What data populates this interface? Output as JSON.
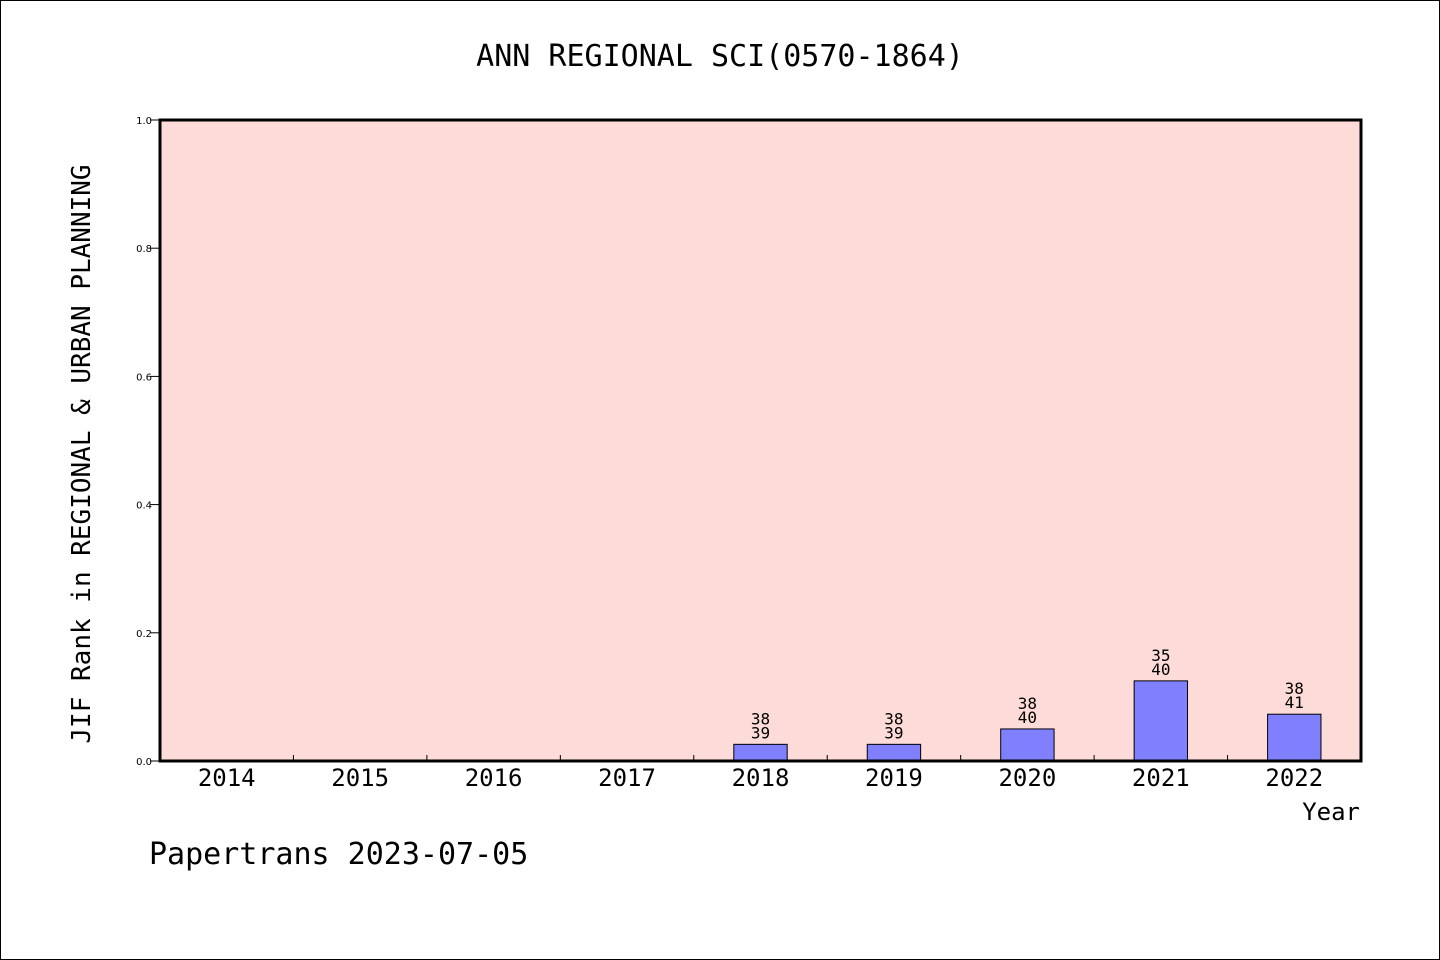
{
  "chart_data": {
    "type": "bar",
    "title": "ANN REGIONAL SCI(0570-1864)",
    "xlabel": "Year",
    "ylabel": "JIF Rank in REGIONAL & URBAN PLANNING",
    "ylim": [
      0.0,
      1.0
    ],
    "yticks": [
      "0.0",
      "0.2",
      "0.4",
      "0.6",
      "0.8",
      "1.0"
    ],
    "categories": [
      "2014",
      "2015",
      "2016",
      "2017",
      "2018",
      "2019",
      "2020",
      "2021",
      "2022"
    ],
    "values": [
      null,
      null,
      null,
      null,
      0.026,
      0.026,
      0.05,
      0.125,
      0.073
    ],
    "bar_labels": [
      null,
      null,
      null,
      null,
      {
        "rank": "38",
        "total": "39"
      },
      {
        "rank": "38",
        "total": "39"
      },
      {
        "rank": "38",
        "total": "40"
      },
      {
        "rank": "35",
        "total": "40"
      },
      {
        "rank": "38",
        "total": "41"
      }
    ],
    "grid": false,
    "colors": {
      "plot_background": "#fddbd8",
      "bar": "#8080ff"
    }
  },
  "footer": {
    "text": "Papertrans 2023-07-05"
  }
}
